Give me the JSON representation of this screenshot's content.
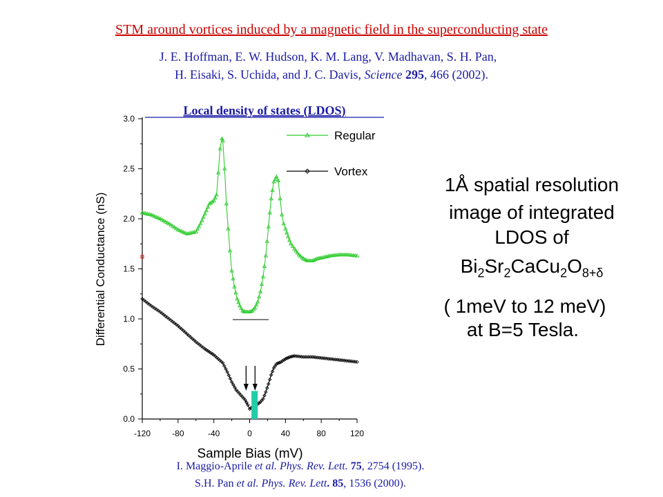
{
  "header": {
    "headline": "STM around vortices induced by a magnetic field in the superconducting state",
    "authors_line1": "J. E. Hoffman, E. W. Hudson, K. M. Lang, V. Madhavan, S. H. Pan,",
    "authors_line2_a": "H. Eisaki, S. Uchida, and J. C. Davis, ",
    "authors_line2_journal": "Science",
    "authors_line2_volume": "295",
    "authors_line2_b": ", 466 (2002)."
  },
  "side_text": {
    "line1": "1Å spatial resolution",
    "line2": "image of integrated",
    "line3": "LDOS of",
    "formula": {
      "bi": "Bi",
      "bi_sub": "2",
      "sr": "Sr",
      "sr_sub": "2",
      "cacu": "CaCu",
      "cu_sub": "2",
      "o": "O",
      "o_sub": "8+δ"
    },
    "line5": "( 1meV to 12 meV)",
    "line6": "at B=5 Tesla."
  },
  "references": {
    "ref1_a": "I. Maggio-Aprile ",
    "ref1_etal": "et al.",
    "ref1_journal": "  Phys. Rev. Lett.",
    "ref1_volume": " 75",
    "ref1_b": ", 2754 (1995).",
    "ref2_a": "S.H. Pan ",
    "ref2_etal": "et al",
    "ref2_journal": ". Phys. Rev. Lett",
    "ref2_volume": ". 85",
    "ref2_b": ", 1536 (2000)."
  },
  "chart_data": {
    "type": "line",
    "title": "Local density of states (LDOS)",
    "xlabel": "Sample Bias (mV)",
    "ylabel": "Differential Conductance (nS)",
    "xlim": [
      -120,
      120
    ],
    "ylim": [
      0.0,
      3.0
    ],
    "xticks": [
      "-120",
      "-80",
      "-40",
      "0",
      "40",
      "80",
      "120"
    ],
    "yticks": [
      "0.0",
      "0.5",
      "1.0",
      "1.5",
      "2.0",
      "2.5",
      "3.0"
    ],
    "legend_position": "top-right",
    "series": [
      {
        "name": "Regular",
        "color": "#2ecc2e",
        "marker": "triangle",
        "x": [
          -120,
          -110,
          -100,
          -90,
          -80,
          -70,
          -60,
          -55,
          -50,
          -45,
          -40,
          -37,
          -35,
          -33,
          -31,
          -30,
          -28,
          -26,
          -24,
          -22,
          -20,
          -17,
          -14,
          -11,
          -8,
          -5,
          -2,
          0,
          3,
          6,
          9,
          12,
          15,
          18,
          21,
          24,
          27,
          30,
          32,
          34,
          36,
          38,
          40,
          43,
          46,
          50,
          55,
          60,
          65,
          70,
          75,
          80,
          90,
          100,
          110,
          120
        ],
        "values": [
          2.06,
          2.04,
          2.0,
          1.95,
          1.89,
          1.85,
          1.87,
          1.95,
          2.05,
          2.15,
          2.18,
          2.24,
          2.46,
          2.7,
          2.8,
          2.78,
          2.5,
          2.15,
          1.9,
          1.68,
          1.48,
          1.32,
          1.2,
          1.13,
          1.08,
          1.07,
          1.07,
          1.07,
          1.08,
          1.11,
          1.17,
          1.27,
          1.42,
          1.63,
          1.92,
          2.2,
          2.37,
          2.42,
          2.38,
          2.2,
          2.04,
          1.95,
          1.9,
          1.82,
          1.75,
          1.7,
          1.64,
          1.6,
          1.58,
          1.58,
          1.6,
          1.61,
          1.63,
          1.64,
          1.64,
          1.63
        ]
      },
      {
        "name": "Vortex",
        "color": "#000000",
        "marker": "diamond",
        "x": [
          -120,
          -110,
          -100,
          -90,
          -80,
          -70,
          -60,
          -50,
          -45,
          -40,
          -35,
          -30,
          -25,
          -20,
          -15,
          -10,
          -5,
          -2,
          0,
          3,
          6,
          9,
          12,
          15,
          18,
          21,
          24,
          27,
          30,
          35,
          40,
          45,
          50,
          60,
          70,
          80,
          90,
          100,
          110,
          120
        ],
        "values": [
          1.2,
          1.13,
          1.07,
          1.0,
          0.93,
          0.85,
          0.77,
          0.7,
          0.67,
          0.64,
          0.6,
          0.56,
          0.47,
          0.37,
          0.29,
          0.24,
          0.19,
          0.14,
          0.1,
          0.12,
          0.14,
          0.15,
          0.17,
          0.2,
          0.27,
          0.35,
          0.44,
          0.51,
          0.55,
          0.57,
          0.6,
          0.62,
          0.63,
          0.62,
          0.62,
          0.61,
          0.6,
          0.59,
          0.58,
          0.57
        ]
      }
    ],
    "annotations": {
      "zero_bar_color": "#22ccaa",
      "arrow_color": "#000000",
      "side_marker_color": "#ff0000"
    }
  }
}
